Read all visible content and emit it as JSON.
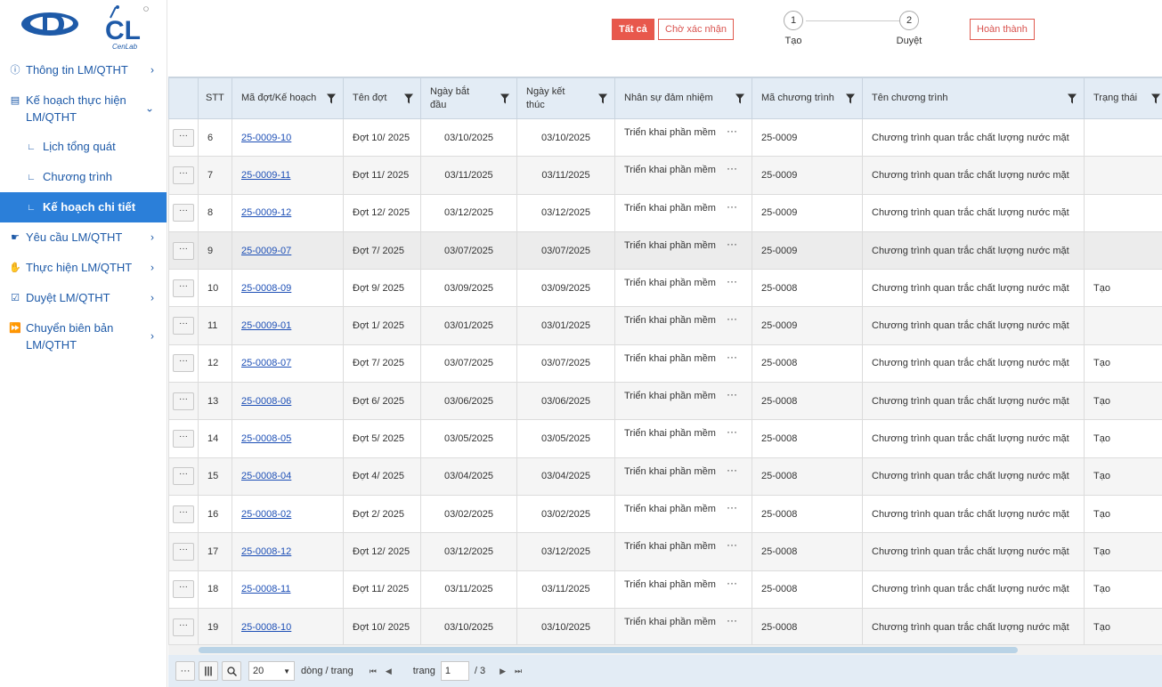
{
  "logo": {
    "cl_letters": "CL",
    "cl_caption": "CenLab"
  },
  "sidebar": {
    "items": [
      {
        "label": "Thông tin LM/QTHT",
        "icon": "info-icon"
      },
      {
        "label": "Kế hoạch thực hiện LM/QTHT",
        "icon": "document-icon"
      },
      {
        "label": "Lịch tổng quát",
        "icon": "corner-icon"
      },
      {
        "label": "Chương trình",
        "icon": "corner-icon"
      },
      {
        "label": "Kế hoạch chi tiết",
        "icon": "corner-icon"
      },
      {
        "label": "Yêu cầu LM/QTHT",
        "icon": "hand-icon"
      },
      {
        "label": "Thực hiện LM/QTHT",
        "icon": "hand-icon"
      },
      {
        "label": "Duyệt LM/QTHT",
        "icon": "checklist-icon"
      },
      {
        "label": "Chuyển biên bản LM/QTHT",
        "icon": "forward-icon"
      }
    ]
  },
  "topbar": {
    "filter_all": "Tất cả",
    "filter_pending": "Chờ xác nhận",
    "filter_done": "Hoàn thành",
    "steps": [
      {
        "num": "1",
        "label": "Tạo"
      },
      {
        "num": "2",
        "label": "Duyệt"
      }
    ]
  },
  "table": {
    "columns": [
      "STT",
      "Mã đợt/Kế hoạch",
      "Tên đợt",
      "Ngày bắt đầu",
      "Ngày kết thúc",
      "Nhân sự đảm nhiệm",
      "Mã chương trình",
      "Tên chương trình",
      "Trạng thái"
    ],
    "action_label": "···",
    "rows": [
      {
        "stt": "6",
        "code": "25-0009-10",
        "name": "Đợt 10/ 2025",
        "start": "03/10/2025",
        "end": "03/10/2025",
        "staff": "Triển khai phần mềm",
        "prog_code": "25-0009",
        "prog_name": "Chương trình quan trắc chất lượng nước mặt",
        "status": ""
      },
      {
        "stt": "7",
        "code": "25-0009-11",
        "name": "Đợt 11/ 2025",
        "start": "03/11/2025",
        "end": "03/11/2025",
        "staff": "Triển khai phần mềm",
        "prog_code": "25-0009",
        "prog_name": "Chương trình quan trắc chất lượng nước mặt",
        "status": ""
      },
      {
        "stt": "8",
        "code": "25-0009-12",
        "name": "Đợt 12/ 2025",
        "start": "03/12/2025",
        "end": "03/12/2025",
        "staff": "Triển khai phần mềm",
        "prog_code": "25-0009",
        "prog_name": "Chương trình quan trắc chất lượng nước mặt",
        "status": ""
      },
      {
        "stt": "9",
        "code": "25-0009-07",
        "name": "Đợt 7/ 2025",
        "start": "03/07/2025",
        "end": "03/07/2025",
        "staff": "Triển khai phần mềm",
        "prog_code": "25-0009",
        "prog_name": "Chương trình quan trắc chất lượng nước mặt",
        "status": ""
      },
      {
        "stt": "10",
        "code": "25-0008-09",
        "name": "Đợt 9/ 2025",
        "start": "03/09/2025",
        "end": "03/09/2025",
        "staff": "Triển khai phần mềm",
        "prog_code": "25-0008",
        "prog_name": "Chương trình quan trắc chất lượng nước mặt",
        "status": "Tạo"
      },
      {
        "stt": "11",
        "code": "25-0009-01",
        "name": "Đợt 1/ 2025",
        "start": "03/01/2025",
        "end": "03/01/2025",
        "staff": "Triển khai phần mềm",
        "prog_code": "25-0009",
        "prog_name": "Chương trình quan trắc chất lượng nước mặt",
        "status": ""
      },
      {
        "stt": "12",
        "code": "25-0008-07",
        "name": "Đợt 7/ 2025",
        "start": "03/07/2025",
        "end": "03/07/2025",
        "staff": "Triển khai phần mềm",
        "prog_code": "25-0008",
        "prog_name": "Chương trình quan trắc chất lượng nước mặt",
        "status": "Tạo"
      },
      {
        "stt": "13",
        "code": "25-0008-06",
        "name": "Đợt 6/ 2025",
        "start": "03/06/2025",
        "end": "03/06/2025",
        "staff": "Triển khai phần mềm",
        "prog_code": "25-0008",
        "prog_name": "Chương trình quan trắc chất lượng nước mặt",
        "status": "Tạo"
      },
      {
        "stt": "14",
        "code": "25-0008-05",
        "name": "Đợt 5/ 2025",
        "start": "03/05/2025",
        "end": "03/05/2025",
        "staff": "Triển khai phần mềm",
        "prog_code": "25-0008",
        "prog_name": "Chương trình quan trắc chất lượng nước mặt",
        "status": "Tạo"
      },
      {
        "stt": "15",
        "code": "25-0008-04",
        "name": "Đợt 4/ 2025",
        "start": "03/04/2025",
        "end": "03/04/2025",
        "staff": "Triển khai phần mềm",
        "prog_code": "25-0008",
        "prog_name": "Chương trình quan trắc chất lượng nước mặt",
        "status": "Tạo"
      },
      {
        "stt": "16",
        "code": "25-0008-02",
        "name": "Đợt 2/ 2025",
        "start": "03/02/2025",
        "end": "03/02/2025",
        "staff": "Triển khai phần mềm",
        "prog_code": "25-0008",
        "prog_name": "Chương trình quan trắc chất lượng nước mặt",
        "status": "Tạo"
      },
      {
        "stt": "17",
        "code": "25-0008-12",
        "name": "Đợt 12/ 2025",
        "start": "03/12/2025",
        "end": "03/12/2025",
        "staff": "Triển khai phần mềm",
        "prog_code": "25-0008",
        "prog_name": "Chương trình quan trắc chất lượng nước mặt",
        "status": "Tạo"
      },
      {
        "stt": "18",
        "code": "25-0008-11",
        "name": "Đợt 11/ 2025",
        "start": "03/11/2025",
        "end": "03/11/2025",
        "staff": "Triển khai phần mềm",
        "prog_code": "25-0008",
        "prog_name": "Chương trình quan trắc chất lượng nước mặt",
        "status": "Tạo"
      },
      {
        "stt": "19",
        "code": "25-0008-10",
        "name": "Đợt 10/ 2025",
        "start": "03/10/2025",
        "end": "03/10/2025",
        "staff": "Triển khai phần mềm",
        "prog_code": "25-0008",
        "prog_name": "Chương trình quan trắc chất lượng nước mặt",
        "status": "Tạo"
      }
    ]
  },
  "pager": {
    "page_size": "20",
    "per_page_label": "dòng / trang",
    "page_label": "trang",
    "current_page": "1",
    "total_pages": "/ 3"
  }
}
